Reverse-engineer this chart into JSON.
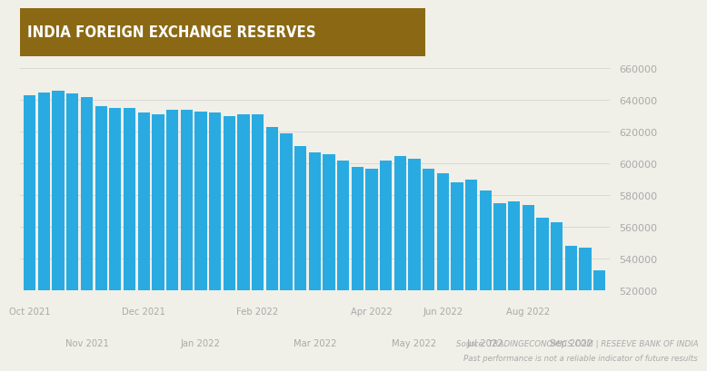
{
  "title": "INDIA FOREIGN EXCHANGE RESERVES",
  "title_bg_color": "#8B6914",
  "title_text_color": "#FFFFFF",
  "bar_color": "#29ABE2",
  "background_color": "#F0EFE8",
  "dotted_bg_color": "#E8E7E0",
  "grid_color": "#D8D8D8",
  "source_text": "Source: TRADINGECONOMICS.COM | RESEEVE BANK OF INDIA",
  "disclaimer_text": "Past performance is not a reliable indicator of future results",
  "ylim": [
    520000,
    665000
  ],
  "yticks": [
    520000,
    540000,
    560000,
    580000,
    600000,
    620000,
    640000,
    660000
  ],
  "values": [
    643000,
    645000,
    646000,
    644000,
    642000,
    636000,
    635000,
    635000,
    632000,
    631000,
    634000,
    634000,
    633000,
    632000,
    630000,
    631000,
    631000,
    623000,
    619000,
    611000,
    607000,
    606000,
    602000,
    598000,
    597000,
    602000,
    605000,
    603000,
    597000,
    594000,
    588000,
    590000,
    583000,
    575000,
    576000,
    574000,
    566000,
    563000,
    548000,
    547000,
    533000
  ],
  "top_labels": [
    {
      "label": "Oct 2021",
      "bar_idx": 0
    },
    {
      "label": "Dec 2021",
      "bar_idx": 8
    },
    {
      "label": "Feb 2022",
      "bar_idx": 16
    },
    {
      "label": "Apr 2022",
      "bar_idx": 24
    },
    {
      "label": "Jun 2022",
      "bar_idx": 29
    },
    {
      "label": "Aug 2022",
      "bar_idx": 35
    }
  ],
  "bottom_labels": [
    {
      "label": "Nov 2021",
      "bar_idx": 4
    },
    {
      "label": "Jan 2022",
      "bar_idx": 12
    },
    {
      "label": "Mar 2022",
      "bar_idx": 20
    },
    {
      "label": "May 2022",
      "bar_idx": 27
    },
    {
      "label": "Jul 2022",
      "bar_idx": 32
    },
    {
      "label": "Sep 2022",
      "bar_idx": 38
    }
  ]
}
